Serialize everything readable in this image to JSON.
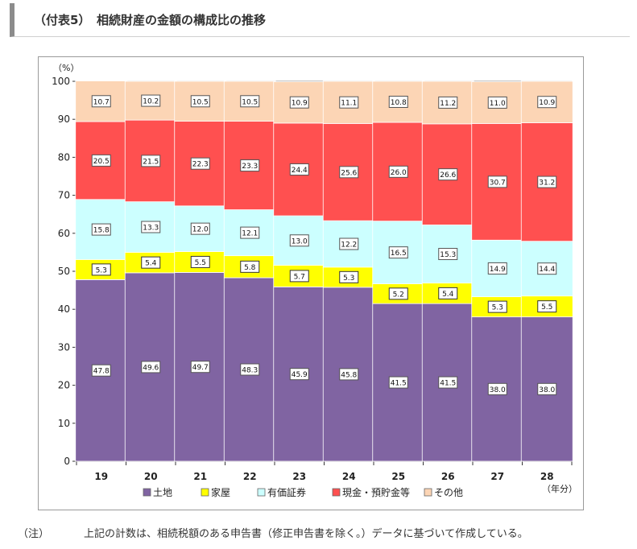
{
  "header": {
    "title": "（付表5）　相続財産の金額の構成比の推移"
  },
  "note": {
    "label": "（注）",
    "text": "上記の計数は、相続税額のある申告書（修正申告書を除く。）データに基づいて作成している。"
  },
  "chart_data": {
    "type": "bar",
    "stacked": true,
    "title": "",
    "ylabel": "（%）",
    "xlabel": "（年分）",
    "ylim": [
      0,
      100
    ],
    "yticks": [
      0,
      10,
      20,
      30,
      40,
      50,
      60,
      70,
      80,
      90,
      100
    ],
    "grid": true,
    "legend_position": "bottom",
    "categories": [
      "19",
      "20",
      "21",
      "22",
      "23",
      "24",
      "25",
      "26",
      "27",
      "28"
    ],
    "series": [
      {
        "name": "土地",
        "color": "#8064a2",
        "values": [
          47.8,
          49.6,
          49.7,
          48.3,
          45.9,
          45.8,
          41.5,
          41.5,
          38.0,
          38.0
        ]
      },
      {
        "name": "家屋",
        "color": "#ffff00",
        "values": [
          5.3,
          5.4,
          5.5,
          5.8,
          5.7,
          5.3,
          5.2,
          5.4,
          5.3,
          5.5
        ]
      },
      {
        "name": "有価証券",
        "color": "#ccffff",
        "values": [
          15.8,
          13.3,
          12.0,
          12.1,
          13.0,
          12.2,
          16.5,
          15.3,
          14.9,
          14.4
        ]
      },
      {
        "name": "現金・預貯金等",
        "color": "#ff5050",
        "values": [
          20.5,
          21.5,
          22.3,
          23.3,
          24.4,
          25.6,
          26.0,
          26.6,
          30.7,
          31.2
        ]
      },
      {
        "name": "その他",
        "color": "#fcd5b5",
        "values": [
          10.7,
          10.2,
          10.5,
          10.5,
          10.9,
          11.1,
          10.8,
          11.2,
          11.0,
          10.9
        ]
      }
    ],
    "value_labels": [
      [
        "47.8",
        "49.6",
        "49.7",
        "48.3",
        "45.9",
        "45.8",
        "41.5",
        "41.5",
        "38.0",
        "38.0"
      ],
      [
        "5.3",
        "5.4",
        "5.5",
        "5.8",
        "5.7",
        "5.3",
        "5.2",
        "5.4",
        "5.3",
        "5.5"
      ],
      [
        "15.8",
        "13.3",
        "12.0",
        "12.1",
        "13.0",
        "12.2",
        "16.5",
        "15.3",
        "14.9",
        "14.4"
      ],
      [
        "20.5",
        "21.5",
        "22.3",
        "23.3",
        "24.4",
        "25.6",
        "26.0",
        "26.6",
        "30.7",
        "31.2"
      ],
      [
        "10.7",
        "10.2",
        "10.5",
        "10.5",
        "10.9",
        "11.1",
        "10.8",
        "11.2",
        "11.0",
        "10.9"
      ]
    ]
  }
}
